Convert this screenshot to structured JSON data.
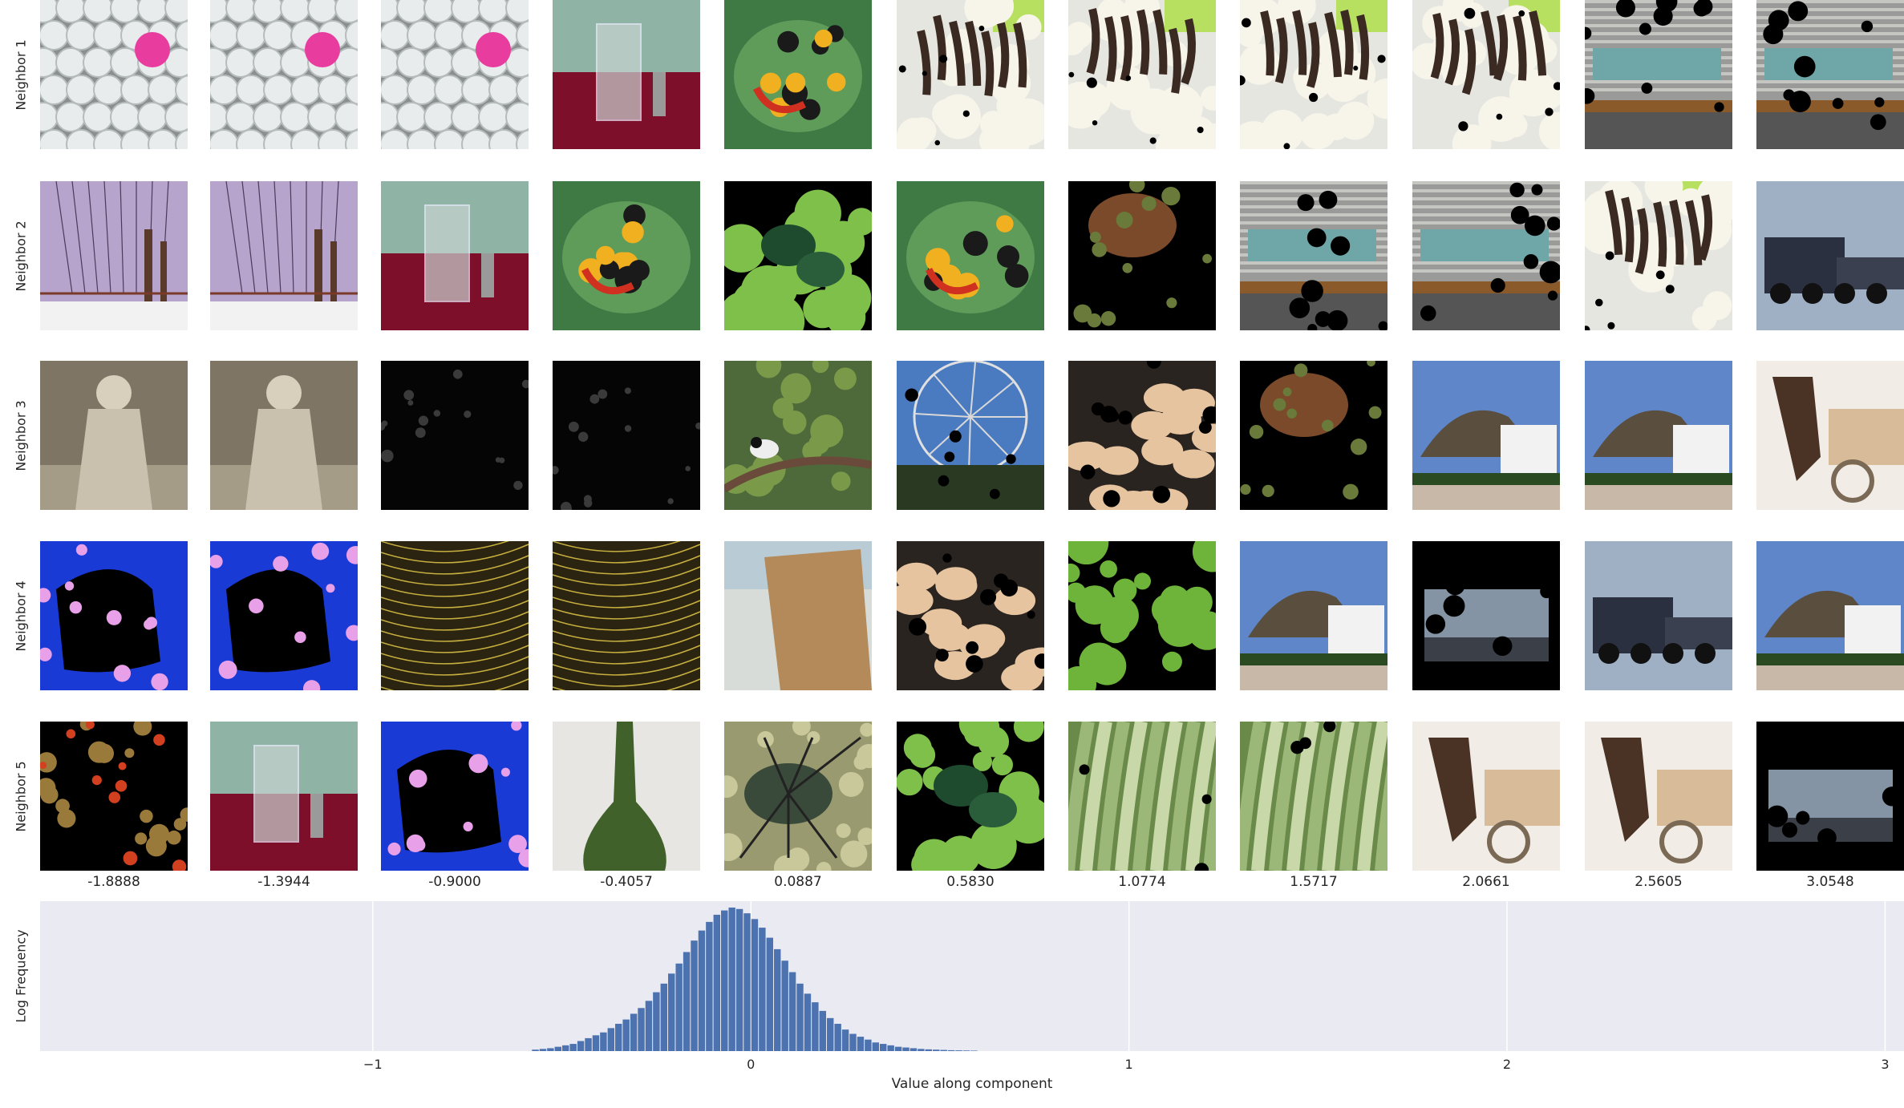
{
  "row_labels": [
    "Neighbor 1",
    "Neighbor 2",
    "Neighbor 3",
    "Neighbor 4",
    "Neighbor 5"
  ],
  "column_values": [
    "-1.8888",
    "-1.3944",
    "-0.9000",
    "-0.4057",
    "0.0887",
    "0.5830",
    "1.0774",
    "1.5717",
    "2.0661",
    "2.5605",
    "3.0548"
  ],
  "thumbnails": [
    [
      "golf-balls-pink",
      "golf-balls-pink",
      "golf-balls-pink",
      "glass-jigger",
      "salamander-leaf",
      "dog-white-fur",
      "dog-white-fur",
      "dog-white-fur",
      "dog-white-fur",
      "graffiti-train",
      "graffiti-train"
    ],
    [
      "barbed-wire-sky",
      "barbed-wire-sky",
      "glass-jigger",
      "salamander-leaf",
      "beetle-leaf-masked",
      "salamander-leaf",
      "crab-masked",
      "graffiti-train",
      "graffiti-train",
      "dog-white-fur",
      "truck-fog"
    ],
    [
      "child-coat-sepia",
      "child-coat-sepia",
      "dark-masked",
      "dark-masked",
      "chickadee-branch",
      "radio-telescope",
      "beans-masked",
      "crab-masked",
      "thatched-cottage",
      "thatched-cottage",
      "horse-cart"
    ],
    [
      "flower-blue-masked",
      "flower-blue-masked",
      "spider-web",
      "spider-web",
      "rock-beach",
      "beans-masked",
      "leaf-masked",
      "thatched-cottage",
      "locomotive-masked",
      "truck-fog",
      "thatched-cottage"
    ],
    [
      "mosaic-masked",
      "glass-jigger",
      "flower-blue-masked",
      "green-vase",
      "beetle-ground",
      "beetle-leaf-masked",
      "celery-stalks",
      "celery-stalks",
      "horse-cart",
      "horse-cart",
      "locomotive-masked"
    ]
  ],
  "chart_data": {
    "type": "bar",
    "title": "",
    "xlabel": "Value along component",
    "ylabel": "Log Frequency",
    "xlim": [
      -1.88,
      3.05
    ],
    "xticks": [
      -1,
      0,
      1,
      2,
      3
    ],
    "xtick_labels": [
      "−1",
      "0",
      "1",
      "2",
      "3"
    ],
    "ylim": [
      0,
      1.0
    ],
    "grid": true,
    "bin_centers": [
      -0.57,
      -0.55,
      -0.53,
      -0.51,
      -0.49,
      -0.47,
      -0.45,
      -0.43,
      -0.41,
      -0.39,
      -0.37,
      -0.35,
      -0.33,
      -0.31,
      -0.29,
      -0.27,
      -0.25,
      -0.23,
      -0.21,
      -0.19,
      -0.17,
      -0.15,
      -0.13,
      -0.11,
      -0.09,
      -0.07,
      -0.05,
      -0.03,
      -0.01,
      0.01,
      0.03,
      0.05,
      0.07,
      0.09,
      0.11,
      0.13,
      0.15,
      0.17,
      0.19,
      0.21,
      0.23,
      0.25,
      0.27,
      0.29,
      0.31,
      0.33,
      0.35,
      0.37,
      0.39,
      0.41,
      0.43,
      0.45,
      0.47,
      0.49,
      0.51,
      0.53,
      0.55,
      0.57,
      0.59
    ],
    "values": [
      0.01,
      0.015,
      0.02,
      0.03,
      0.04,
      0.05,
      0.07,
      0.09,
      0.11,
      0.13,
      0.16,
      0.19,
      0.22,
      0.26,
      0.3,
      0.35,
      0.41,
      0.47,
      0.54,
      0.61,
      0.69,
      0.77,
      0.84,
      0.9,
      0.95,
      0.98,
      1.0,
      0.99,
      0.96,
      0.92,
      0.86,
      0.79,
      0.71,
      0.63,
      0.55,
      0.47,
      0.4,
      0.34,
      0.28,
      0.23,
      0.19,
      0.15,
      0.12,
      0.1,
      0.08,
      0.06,
      0.05,
      0.04,
      0.03,
      0.025,
      0.02,
      0.015,
      0.012,
      0.01,
      0.008,
      0.006,
      0.005,
      0.004,
      0.003
    ],
    "bar_color": "#4c72b0",
    "background": "#eaeaf2",
    "grid_color": "#ffffff"
  }
}
